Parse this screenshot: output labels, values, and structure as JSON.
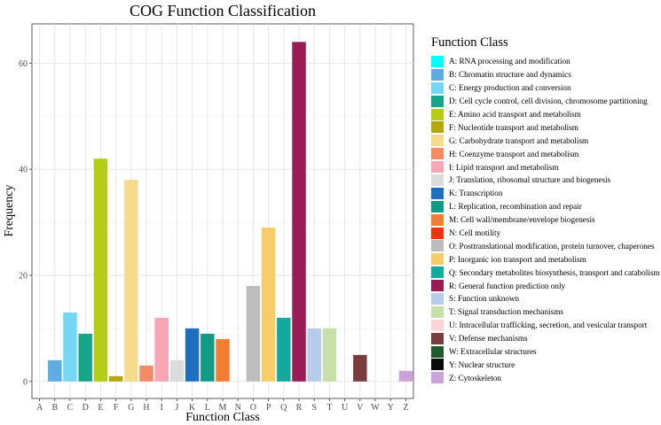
{
  "chart_data": {
    "type": "bar",
    "title": "COG Function Classification",
    "xlabel": "Function Class",
    "ylabel": "Frequency",
    "ylim": [
      0,
      70
    ],
    "yticks": [
      0,
      20,
      40,
      60
    ],
    "grid": true,
    "legend_title": "Function Class",
    "legend_position": "right",
    "categories": [
      "A",
      "B",
      "C",
      "D",
      "E",
      "F",
      "G",
      "H",
      "I",
      "J",
      "K",
      "L",
      "M",
      "N",
      "O",
      "P",
      "Q",
      "R",
      "S",
      "T",
      "U",
      "V",
      "W",
      "Y",
      "Z"
    ],
    "values": [
      0,
      4,
      13,
      9,
      42,
      1,
      38,
      3,
      12,
      4,
      10,
      9,
      8,
      0,
      18,
      29,
      12,
      64,
      10,
      10,
      0,
      5,
      0,
      0,
      2
    ],
    "colors": [
      "#00FFFF",
      "#5DADE2",
      "#76D7F5",
      "#17A589",
      "#B5CC18",
      "#B3A80E",
      "#F4DC8C",
      "#F58A66",
      "#F8A6B6",
      "#DCDCDC",
      "#1E6FBF",
      "#139A86",
      "#F27D33",
      "#F0320E",
      "#BDBDBD",
      "#F7CD69",
      "#13A99C",
      "#9B1B55",
      "#B5CCEB",
      "#C7DFA8",
      "#FAD6D6",
      "#7A3C3C",
      "#1F5B2A",
      "#0A0A0A",
      "#CCA3D6"
    ],
    "legend": [
      "A: RNA processing and modification",
      "B: Chromatin structure and dynamics",
      "C: Energy production and conversion",
      "D: Cell cycle control, cell division, chromosome partitioning",
      "E: Amino acid transport and metabolism",
      "F: Nucleotide transport and metabolism",
      "G: Carbohydrate transport and metabolism",
      "H: Coenzyme transport and metabolism",
      "I: Lipid transport and metabolism",
      "J: Translation, ribosomal structure and biogenesis",
      "K: Transcription",
      "L: Replication, recombination and repair",
      "M: Cell wall/membrane/envelope biogenesis",
      "N: Cell motility",
      "O: Posttranslational modification, protein turnover, chaperones",
      "P: Inorganic ion transport and metabolism",
      "Q: Secondary metabolites biosynthesis, transport and catabolism",
      "R: General function prediction only",
      "S: Function unknown",
      "T: Signal transduction mechanisms",
      "U: Intracellular trafficking, secretion, and vesicular transport",
      "V: Defense mechanisms",
      "W: Extracellular structures",
      "Y: Nuclear structure",
      "Z: Cytoskeleton"
    ]
  }
}
